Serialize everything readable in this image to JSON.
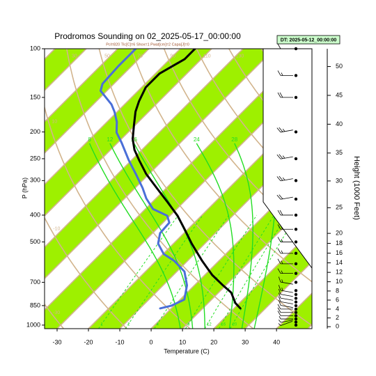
{
  "chart_data": {
    "type": "skewt",
    "title": "Prodromos Sounding on 02_2025-05-17_00:00:00",
    "subtitle": "Pcl=820 Tlc[C]=6 Shox=1 Pwat[cm]=2 Capa[J]=0",
    "date_box": "DT: 2025-05-12_00:00:00",
    "x_label": "Temperature (C)",
    "y_label": "P (hPa)",
    "y2_label": "Height (1000 Feet)",
    "xlim": [
      -34,
      51.3
    ],
    "xticks": [
      -30,
      -20,
      -10,
      0,
      10,
      20,
      30,
      40
    ],
    "ylim": [
      100,
      1030
    ],
    "yticks": [
      100,
      150,
      200,
      250,
      300,
      400,
      500,
      700,
      850,
      1000
    ],
    "log_y": true,
    "skew_deg": 45,
    "y2ticks": [
      0,
      2,
      4,
      6,
      8,
      10,
      12,
      14,
      16,
      18,
      20,
      25,
      30,
      35,
      40,
      45,
      50
    ],
    "band_color": "#9ef000",
    "isotherm_color": "#d2b48c",
    "moist_color": "#22dd22",
    "dry_adiabats": [
      -30,
      -10,
      10,
      30,
      50,
      70,
      90,
      110,
      130,
      150,
      170
    ],
    "moist_adiabats": [
      8,
      12,
      16,
      24,
      28,
      32
    ],
    "mixing_ratios": [
      1,
      2,
      4,
      8,
      12,
      16,
      20
    ],
    "series": [
      {
        "name": "Temperature",
        "color": "#000000",
        "pressure": [
          870,
          832,
          762,
          718,
          659,
          586,
          507,
          451,
          402,
          358,
          319,
          284,
          253,
          232,
          212,
          189,
          169,
          155,
          138,
          123,
          109,
          100
        ],
        "values": [
          22,
          18.7,
          14,
          9.1,
          2.4,
          -5.3,
          -14.2,
          -20.9,
          -27.6,
          -35.3,
          -43.1,
          -50.9,
          -57.6,
          -62.4,
          -66.4,
          -70.4,
          -74.2,
          -76.4,
          -78.7,
          -78.7,
          -75.3,
          -75.3
        ]
      },
      {
        "name": "Dewpoint",
        "color": "#4a6fd8",
        "pressure": [
          870,
          851,
          808,
          718,
          640,
          586,
          553,
          507,
          465,
          426,
          402,
          380,
          348,
          319,
          284,
          253,
          219,
          201,
          184,
          169,
          159,
          142,
          134,
          116,
          100
        ],
        "values": [
          -3.6,
          -0.9,
          1.3,
          -2.4,
          -7.6,
          -14.2,
          -19.8,
          -24.9,
          -27.6,
          -28,
          -30.9,
          -37.6,
          -43.1,
          -47.6,
          -54.2,
          -60.9,
          -68.7,
          -73.6,
          -76.9,
          -80.9,
          -84.2,
          -92,
          -93.6,
          -94.2,
          -94.2
        ]
      }
    ],
    "winds": {
      "pressure": [
        1000,
        975,
        950,
        925,
        900,
        875,
        850,
        825,
        800,
        775,
        750,
        700,
        650,
        600,
        550,
        500,
        450,
        400,
        350,
        300,
        250,
        200,
        150,
        125,
        100
      ],
      "speed": [
        5,
        5,
        5,
        10,
        10,
        10,
        10,
        10,
        10,
        10,
        15,
        15,
        15,
        15,
        15,
        15,
        20,
        20,
        20,
        25,
        25,
        25,
        20,
        15,
        10
      ],
      "direction": [
        250,
        260,
        270,
        270,
        270,
        270,
        280,
        280,
        280,
        280,
        280,
        280,
        270,
        270,
        270,
        270,
        270,
        270,
        260,
        260,
        260,
        260,
        270,
        270,
        270
      ]
    }
  }
}
